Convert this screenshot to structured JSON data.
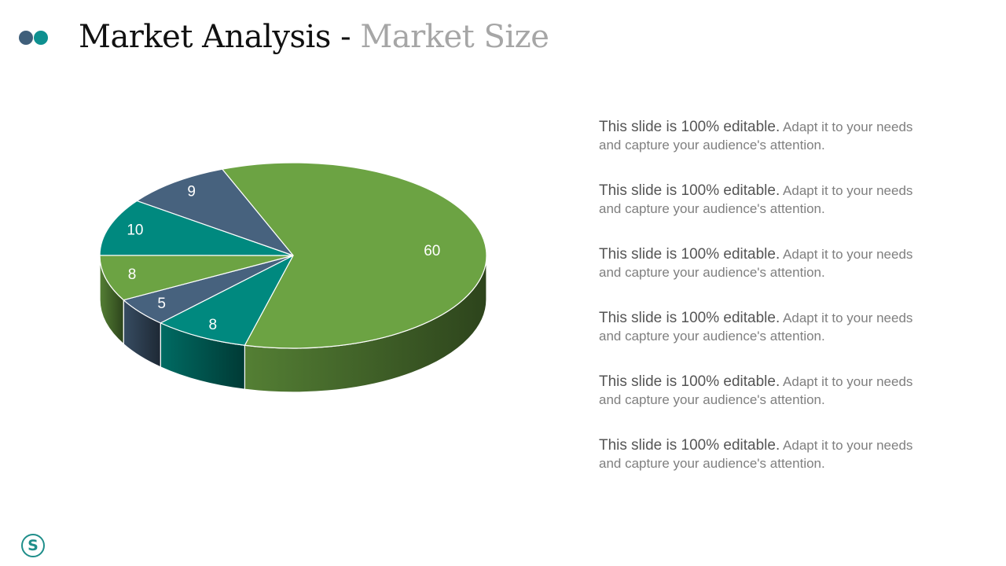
{
  "header": {
    "title_main": "Market Analysis",
    "title_separator": " - ",
    "title_sub": "Market Size"
  },
  "colors": {
    "green": "#6ca343",
    "slate": "#47627e",
    "teal": "#00897f",
    "title_accent": "#a6a6a6",
    "dot_slate": "#3f5f7a",
    "dot_teal": "#0e9090",
    "logo_teal": "#1f8e8a"
  },
  "chart_data": {
    "type": "pie",
    "style": "3d",
    "title": "",
    "values": [
      60,
      8,
      5,
      8,
      10,
      9
    ],
    "data_labels": [
      "60",
      "8",
      "5",
      "8",
      "10",
      "9"
    ],
    "colors": [
      "#6ca343",
      "#00897f",
      "#47627e",
      "#6ca343",
      "#00897f",
      "#47627e"
    ],
    "legend": false
  },
  "text_blocks": [
    {
      "lead": "This slide is 100% editable.",
      "body": " Adapt it to your needs and capture your audience's attention."
    },
    {
      "lead": "This slide is 100% editable.",
      "body": " Adapt it to your needs and capture your audience's attention."
    },
    {
      "lead": "This slide is 100% editable.",
      "body": " Adapt it to your needs and capture your audience's attention."
    },
    {
      "lead": "This slide is 100% editable.",
      "body": " Adapt it to your needs and capture your audience's attention."
    },
    {
      "lead": "This slide is 100% editable.",
      "body": " Adapt it to your needs and capture your audience's attention."
    },
    {
      "lead": "This slide is 100% editable.",
      "body": " Adapt it to your needs and capture your audience's attention."
    }
  ],
  "logo": {
    "letter": "S",
    "icon": "slidegeeks-logo-icon"
  }
}
